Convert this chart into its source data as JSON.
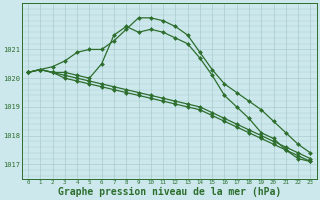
{
  "background_color": "#cce8ed",
  "grid_color": "#aacccc",
  "line_color": "#2d6e2d",
  "marker_color": "#2d6e2d",
  "xlabel": "Graphe pression niveau de la mer (hPa)",
  "xlabel_fontsize": 7.0,
  "ylim": [
    1016.5,
    1022.6
  ],
  "xlim": [
    -0.5,
    23.5
  ],
  "yticks": [
    1017,
    1018,
    1019,
    1020,
    1021
  ],
  "xtick_labels": [
    "0",
    "1",
    "2",
    "3",
    "4",
    "5",
    "6",
    "7",
    "8",
    "9",
    "10",
    "11",
    "12",
    "13",
    "14",
    "15",
    "16",
    "17",
    "18",
    "19",
    "20",
    "21",
    "22",
    "23"
  ],
  "series": [
    [
      1020.2,
      1020.3,
      1020.2,
      1020.2,
      1020.1,
      1020.0,
      1020.5,
      1021.5,
      1021.8,
      1021.6,
      1021.7,
      1021.6,
      1021.4,
      1021.2,
      1020.7,
      1020.1,
      1019.4,
      1019.0,
      1018.6,
      1018.1,
      1017.9,
      1017.5,
      1017.2,
      1017.1
    ],
    [
      1020.2,
      1020.3,
      1020.4,
      1020.6,
      1020.9,
      1021.0,
      1021.0,
      1021.3,
      1021.7,
      1022.1,
      1022.1,
      1022.0,
      1021.8,
      1021.5,
      1020.9,
      1020.3,
      1019.8,
      1019.5,
      1019.2,
      1018.9,
      1018.5,
      1018.1,
      1017.7,
      1017.4
    ],
    [
      1020.2,
      1020.3,
      1020.2,
      1020.1,
      1020.0,
      1019.9,
      1019.8,
      1019.7,
      1019.6,
      1019.5,
      1019.4,
      1019.3,
      1019.2,
      1019.1,
      1019.0,
      1018.8,
      1018.6,
      1018.4,
      1018.2,
      1018.0,
      1017.8,
      1017.6,
      1017.4,
      1017.2
    ],
    [
      1020.2,
      1020.3,
      1020.2,
      1020.0,
      1019.9,
      1019.8,
      1019.7,
      1019.6,
      1019.5,
      1019.4,
      1019.3,
      1019.2,
      1019.1,
      1019.0,
      1018.9,
      1018.7,
      1018.5,
      1018.3,
      1018.1,
      1017.9,
      1017.7,
      1017.5,
      1017.3,
      1017.1
    ]
  ]
}
